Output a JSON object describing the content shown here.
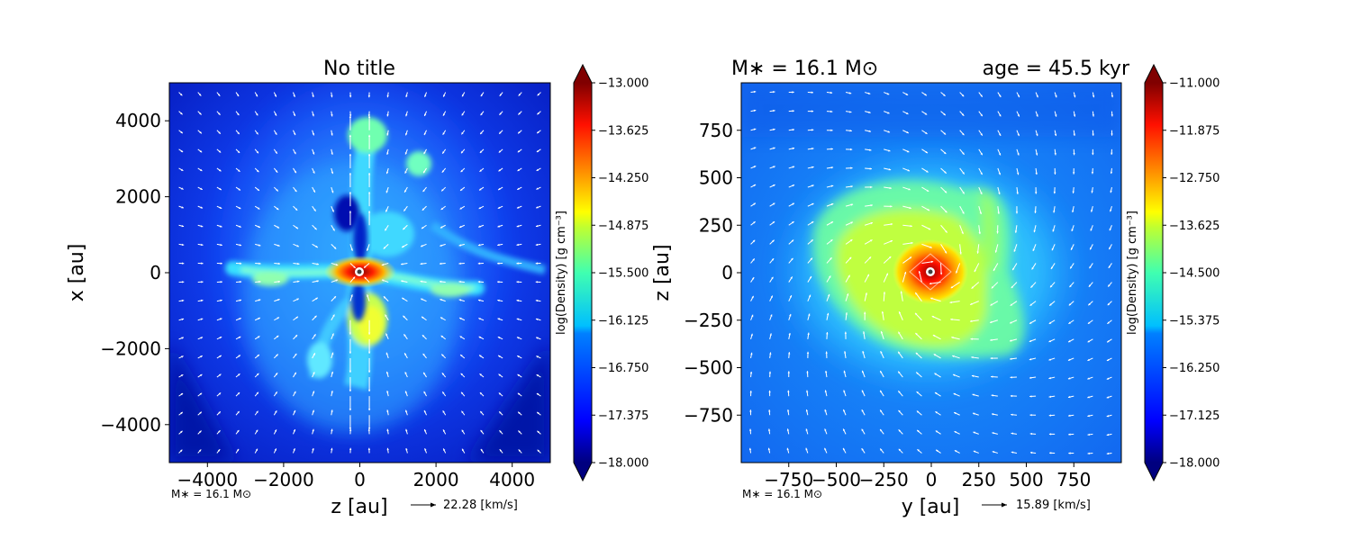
{
  "chart_data": [
    {
      "type": "heatmap",
      "title": "No title",
      "xlabel": "z [au]",
      "ylabel": "x [au]",
      "xlim": [
        -5000,
        5000
      ],
      "ylim": [
        -5000,
        5000
      ],
      "xticks": [
        -4000,
        -2000,
        0,
        2000,
        4000
      ],
      "xtick_labels": [
        "−4000",
        "−2000",
        "0",
        "2000",
        "4000"
      ],
      "yticks": [
        -4000,
        -2000,
        0,
        2000,
        4000
      ],
      "ytick_labels": [
        "−4000",
        "−2000",
        "0",
        "2000",
        "4000"
      ],
      "colorbar": {
        "label": "log(Density) [g cm⁻³]",
        "range": [
          -18.0,
          -13.0
        ],
        "ticks": [
          -18.0,
          -17.375,
          -16.75,
          -16.125,
          -15.5,
          -14.875,
          -14.25,
          -13.625,
          -13.0
        ],
        "tick_labels": [
          "−18.000",
          "−17.375",
          "−16.750",
          "−16.125",
          "−15.500",
          "−14.875",
          "−14.250",
          "−13.625",
          "−13.000"
        ],
        "colormap": "jet"
      },
      "annotation": "M∗ = 16.1 M⊙",
      "quiver_key": "22.28 [km/s]"
    },
    {
      "type": "heatmap",
      "title_left": "M∗ = 16.1 M⊙",
      "title_right": "age = 45.5 kyr",
      "xlabel": "y [au]",
      "ylabel": "z [au]",
      "xlim": [
        -1000,
        1000
      ],
      "ylim": [
        -1000,
        1000
      ],
      "xticks": [
        -750,
        -500,
        -250,
        0,
        250,
        500,
        750
      ],
      "xtick_labels": [
        "−750",
        "−500",
        "−250",
        "0",
        "250",
        "500",
        "750"
      ],
      "yticks": [
        -750,
        -500,
        -250,
        0,
        250,
        500,
        750
      ],
      "ytick_labels": [
        "−750",
        "−500",
        "−250",
        "0",
        "250",
        "500",
        "750"
      ],
      "colorbar": {
        "label": "log(Density) [g cm⁻³]",
        "range": [
          -18.0,
          -11.0
        ],
        "ticks": [
          -18.0,
          -17.125,
          -16.25,
          -15.375,
          -14.5,
          -13.625,
          -12.75,
          -11.875,
          -11.0
        ],
        "tick_labels": [
          "−18.000",
          "−17.125",
          "−16.250",
          "−15.375",
          "−14.500",
          "−13.625",
          "−12.750",
          "−11.875",
          "−11.000"
        ],
        "colormap": "jet"
      },
      "annotation": "M∗ = 16.1 M⊙",
      "quiver_key": "15.89 [km/s]"
    }
  ]
}
